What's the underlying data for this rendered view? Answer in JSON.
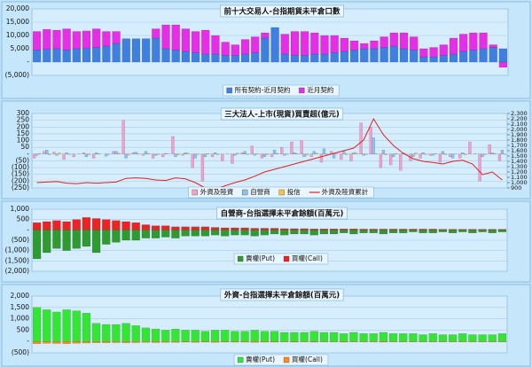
{
  "chart_data": [
    {
      "type": "bar",
      "title": "前十大交易人-台指期貨未平倉口數",
      "stacked": true,
      "grid": true,
      "categories": [
        null,
        null,
        null,
        null,
        null,
        null,
        null,
        null,
        null,
        null,
        null,
        null,
        null,
        null,
        null,
        null,
        null,
        null,
        null,
        null,
        null,
        null,
        null,
        null,
        null,
        null,
        null,
        null,
        null,
        null,
        null,
        null,
        null,
        null,
        null,
        null,
        null,
        null,
        null,
        null,
        null,
        null,
        null,
        null,
        null,
        null,
        null,
        null
      ],
      "series": [
        {
          "name": "所有契約-近月契約",
          "color": "#3f7fe0",
          "values": [
            4500,
            4800,
            5000,
            4500,
            5000,
            5200,
            5500,
            6000,
            7000,
            8800,
            8800,
            8800,
            9000,
            5000,
            4500,
            4000,
            3500,
            3000,
            3000,
            2500,
            2500,
            3000,
            3500,
            9000,
            13000,
            3000,
            2500,
            2500,
            3000,
            3000,
            3500,
            4000,
            4500,
            5000,
            5000,
            5500,
            6000,
            5000,
            4500,
            2000,
            2000,
            2500,
            3000,
            4000,
            4500,
            5000,
            5500,
            5000
          ]
        },
        {
          "name": "近月契約",
          "color": "#e62ee6",
          "values": [
            7000,
            7500,
            7000,
            8000,
            6500,
            6500,
            7000,
            5500,
            4500,
            0,
            0,
            0,
            3500,
            9000,
            9500,
            8500,
            8000,
            9000,
            7000,
            5000,
            4000,
            5500,
            6000,
            2000,
            0,
            7500,
            9000,
            9000,
            8000,
            7000,
            6500,
            5000,
            3500,
            2000,
            3000,
            4000,
            5000,
            6000,
            5000,
            3000,
            3500,
            4000,
            6000,
            6500,
            6500,
            6000,
            1000,
            -2000
          ]
        }
      ],
      "ylim": [
        -5000,
        20000
      ],
      "yticks": [
        {
          "value": -5000,
          "label": "(5,000)"
        },
        {
          "value": 0,
          "label": "-"
        },
        {
          "value": 5000,
          "label": "5,000"
        },
        {
          "value": 10000,
          "label": "10,000"
        },
        {
          "value": 15000,
          "label": "15,000"
        },
        {
          "value": 20000,
          "label": "20,000"
        }
      ]
    },
    {
      "type": "bar",
      "title": "三大法人-上市(現貨)買賣超(億元)",
      "stacked": false,
      "grid": true,
      "categories": [
        null,
        null,
        null,
        null,
        null,
        null,
        null,
        null,
        null,
        null,
        null,
        null,
        null,
        null,
        null,
        null,
        null,
        null,
        null,
        null,
        null,
        null,
        null,
        null,
        null,
        null,
        null,
        null,
        null,
        null,
        null,
        null,
        null,
        null,
        null,
        null,
        null,
        null,
        null,
        null,
        null,
        null,
        null,
        null,
        null,
        null,
        null,
        null
      ],
      "series": [
        {
          "name": "外資及陸資",
          "color": "#f2a0d0",
          "values": [
            -30,
            20,
            15,
            -40,
            -20,
            10,
            -30,
            0,
            20,
            250,
            10,
            -10,
            -30,
            -20,
            130,
            -10,
            -100,
            -200,
            -20,
            -50,
            -70,
            10,
            60,
            -30,
            -20,
            50,
            90,
            100,
            -20,
            -60,
            20,
            -40,
            -50,
            230,
            200,
            -100,
            -80,
            -120,
            -50,
            -30,
            -10,
            -60,
            -20,
            -30,
            90,
            -200,
            70,
            -50
          ]
        },
        {
          "name": "自營商",
          "color": "#8cc0f0",
          "values": [
            -10,
            30,
            -10,
            10,
            0,
            -20,
            10,
            -15,
            20,
            -30,
            15,
            20,
            -10,
            5,
            -20,
            10,
            -30,
            -20,
            10,
            0,
            -10,
            20,
            -10,
            -20,
            30,
            -10,
            10,
            -20,
            20,
            40,
            -30,
            20,
            10,
            -10,
            120,
            30,
            -20,
            10,
            -20,
            10,
            -10,
            20,
            -30,
            10,
            0,
            -20,
            10,
            30
          ]
        },
        {
          "name": "投信",
          "color": "#f5c542",
          "values": [
            5,
            -5,
            8,
            -3,
            2,
            -6,
            4,
            -2,
            6,
            -8,
            3,
            5,
            -4,
            2,
            -7,
            6,
            -3,
            4,
            -5,
            2,
            7,
            -4,
            3,
            -6,
            5,
            -2,
            4,
            -8,
            6,
            -3,
            2,
            -5,
            7,
            -4,
            3,
            -6,
            5,
            -2,
            8,
            -3,
            4,
            -5,
            2,
            -6,
            3,
            -4,
            5,
            -2
          ]
        },
        {
          "name": "外資及陸資累計",
          "color": "#e02020",
          "type": "line",
          "axis": "y2",
          "values": [
            1000,
            1010,
            1020,
            990,
            980,
            1000,
            990,
            1000,
            1010,
            1080,
            1090,
            1080,
            1050,
            1040,
            1090,
            1070,
            1000,
            900,
            880,
            940,
            1000,
            1050,
            1120,
            1200,
            1250,
            1300,
            1350,
            1400,
            1450,
            1500,
            1550,
            1600,
            1650,
            1800,
            2200,
            1900,
            1700,
            1550,
            1450,
            1400,
            1380,
            1350,
            1400,
            1420,
            1350,
            1150,
            1200,
            1050
          ]
        }
      ],
      "ylim": [
        -250,
        300
      ],
      "yticks": [
        {
          "value": -250,
          "label": "(250)"
        },
        {
          "value": -200,
          "label": "(200)"
        },
        {
          "value": -150,
          "label": "(150)"
        },
        {
          "value": -100,
          "label": "(100)"
        },
        {
          "value": -50,
          "label": "(50)"
        },
        {
          "value": 0,
          "label": "-"
        },
        50,
        100,
        150,
        200,
        250,
        300
      ],
      "y2lim": [
        900,
        2300
      ],
      "y2ticks": [
        900,
        {
          "value": 1000,
          "label": "1,000"
        },
        {
          "value": 1100,
          "label": "1,100"
        },
        {
          "value": 1200,
          "label": "1,200"
        },
        {
          "value": 1300,
          "label": "1,300"
        },
        {
          "value": 1400,
          "label": "1,400"
        },
        {
          "value": 1500,
          "label": "1,500"
        },
        {
          "value": 1600,
          "label": "1,600"
        },
        {
          "value": 1700,
          "label": "1,700"
        },
        {
          "value": 1800,
          "label": "1,800"
        },
        {
          "value": 1900,
          "label": "1,900"
        },
        {
          "value": 2000,
          "label": "2,000"
        },
        {
          "value": 2100,
          "label": "2,100"
        },
        {
          "value": 2200,
          "label": "2,200"
        },
        {
          "value": 2300,
          "label": "2,300"
        }
      ]
    },
    {
      "type": "bar",
      "title": "自營商-台指選擇未平倉餘額(百萬元)",
      "stacked": true,
      "grid": true,
      "categories": [
        null,
        null,
        null,
        null,
        null,
        null,
        null,
        null,
        null,
        null,
        null,
        null,
        null,
        null,
        null,
        null,
        null,
        null,
        null,
        null,
        null,
        null,
        null,
        null,
        null,
        null,
        null,
        null,
        null,
        null,
        null,
        null,
        null,
        null,
        null,
        null,
        null,
        null,
        null,
        null,
        null,
        null,
        null,
        null,
        null,
        null,
        null,
        null
      ],
      "series": [
        {
          "name": "賣權(Put)",
          "color": "#2f9a2f",
          "values": [
            -1400,
            -1100,
            -900,
            -1000,
            -900,
            -800,
            -1100,
            -700,
            -600,
            -500,
            -500,
            -400,
            -400,
            -350,
            -400,
            -300,
            -300,
            -300,
            -250,
            -300,
            -250,
            -250,
            -300,
            -250,
            -200,
            -250,
            -200,
            -200,
            -250,
            -200,
            -200,
            -150,
            -200,
            -150,
            -150,
            -200,
            -150,
            -150,
            -100,
            -150,
            -150,
            -100,
            -150,
            -100,
            -150,
            -100,
            -150,
            -100
          ]
        },
        {
          "name": "買權(Call)",
          "color": "#ee2222",
          "values": [
            350,
            400,
            450,
            400,
            500,
            600,
            550,
            500,
            450,
            400,
            350,
            250,
            200,
            200,
            150,
            150,
            150,
            150,
            120,
            100,
            100,
            100,
            80,
            80,
            80,
            60,
            60,
            60,
            50,
            50,
            50,
            50,
            50,
            40,
            40,
            40,
            40,
            40,
            40,
            40,
            40,
            30,
            30,
            30,
            30,
            30,
            30,
            30
          ]
        }
      ],
      "ylim": [
        -2000,
        1000
      ],
      "yticks": [
        {
          "value": -2000,
          "label": "(2,000)"
        },
        {
          "value": -1500,
          "label": "(1,500)"
        },
        {
          "value": -1000,
          "label": "(1,000)"
        },
        {
          "value": -500,
          "label": "(500)"
        },
        {
          "value": 0,
          "label": "-"
        },
        500,
        {
          "value": 1000,
          "label": "1,000"
        }
      ]
    },
    {
      "type": "bar",
      "title": "外資-台指選擇未平倉餘額(百萬元)",
      "stacked": true,
      "grid": true,
      "categories": [
        null,
        null,
        null,
        null,
        null,
        null,
        null,
        null,
        null,
        null,
        null,
        null,
        null,
        null,
        null,
        null,
        null,
        null,
        null,
        null,
        null,
        null,
        null,
        null,
        null,
        null,
        null,
        null,
        null,
        null,
        null,
        null,
        null,
        null,
        null,
        null,
        null,
        null,
        null,
        null,
        null,
        null,
        null,
        null,
        null,
        null,
        null,
        null
      ],
      "series": [
        {
          "name": "賣權(Put)",
          "color": "#33e633",
          "values": [
            1500,
            1400,
            1300,
            1400,
            1350,
            1250,
            800,
            750,
            750,
            800,
            700,
            600,
            550,
            500,
            550,
            500,
            500,
            450,
            500,
            500,
            450,
            450,
            500,
            450,
            450,
            400,
            400,
            400,
            450,
            400,
            400,
            350,
            400,
            350,
            350,
            400,
            350,
            350,
            350,
            300,
            350,
            300,
            300,
            350,
            300,
            300,
            300,
            350
          ]
        },
        {
          "name": "買權(Call)",
          "color": "#ff8c1a",
          "values": [
            -100,
            -80,
            -90,
            -100,
            -80,
            -70,
            -60,
            -60,
            -50,
            -60,
            -50,
            -40,
            -50,
            -40,
            -40,
            -30,
            -40,
            -30,
            -40,
            -30,
            -30,
            -30,
            -40,
            -30,
            -30,
            -20,
            -30,
            -20,
            -30,
            -20,
            -20,
            -30,
            -20,
            -20,
            -20,
            -30,
            -20,
            -20,
            -20,
            -20,
            -20,
            -20,
            -20,
            -20,
            -20,
            -20,
            -20,
            -20
          ]
        }
      ],
      "ylim": [
        -500,
        2000
      ],
      "yticks": [
        {
          "value": -500,
          "label": "(500)"
        },
        {
          "value": 0,
          "label": "-"
        },
        500,
        {
          "value": 1000,
          "label": "1,000"
        },
        {
          "value": 1500,
          "label": "1,500"
        },
        {
          "value": 2000,
          "label": "2,000"
        }
      ]
    }
  ]
}
